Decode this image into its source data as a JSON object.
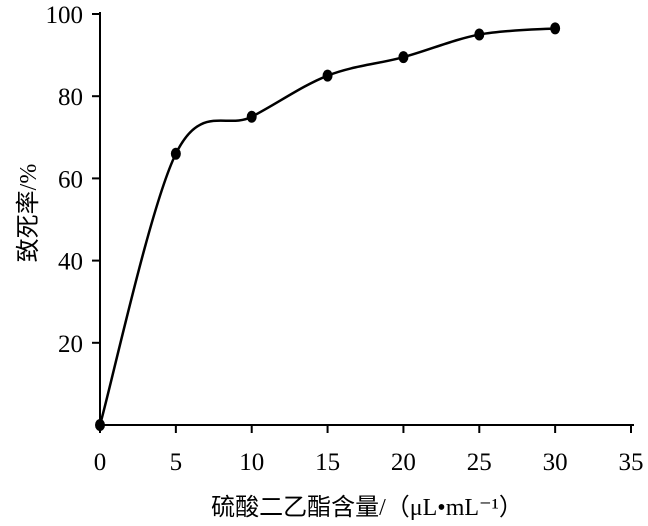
{
  "chart_data": {
    "type": "line",
    "title": "",
    "xlabel": "硫酸二乙酯含量/（μL•mL⁻¹）",
    "ylabel": "致死率/%",
    "xlim": [
      0,
      35
    ],
    "ylim": [
      0,
      100
    ],
    "x_ticks": [
      0,
      5,
      10,
      15,
      20,
      25,
      30,
      35
    ],
    "y_ticks": [
      20,
      40,
      60,
      80,
      100
    ],
    "x_tick_labels": [
      "0",
      "5",
      "10",
      "15",
      "20",
      "25",
      "30",
      "35"
    ],
    "y_tick_labels": [
      "20",
      "40",
      "60",
      "80",
      "100"
    ],
    "grid": false,
    "smooth": true,
    "marker": "circle",
    "line_color": "#000000",
    "series": [
      {
        "x": [
          0,
          5,
          10,
          15,
          20,
          25,
          30
        ],
        "values": [
          0,
          66,
          75,
          85,
          89.5,
          95,
          96.5
        ]
      }
    ]
  }
}
